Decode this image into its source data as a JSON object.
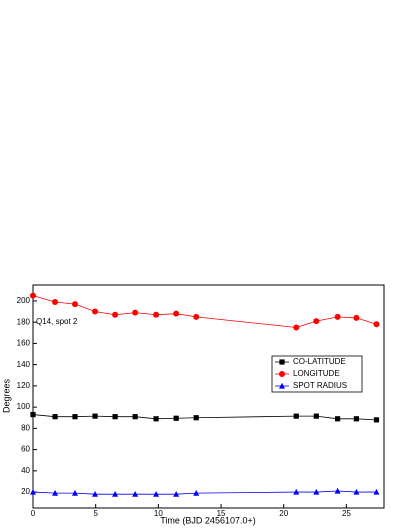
{
  "chart_data": {
    "type": "line",
    "annotation": "Q14, spot 2",
    "xlabel": "Time (BJD 2456107.0+)",
    "ylabel": "Degrees",
    "x": [
      0,
      1.76,
      3.35,
      4.95,
      6.55,
      8.15,
      9.82,
      11.42,
      13.02,
      21.0,
      22.6,
      24.3,
      25.8,
      27.4
    ],
    "series": [
      {
        "name": "CO-LATITUDE",
        "color": "#000000",
        "marker": "square",
        "values": [
          93,
          91,
          91,
          91.5,
          91,
          91,
          89,
          89.5,
          90,
          91.5,
          91.5,
          89,
          89,
          88
        ]
      },
      {
        "name": "LONGITUDE",
        "color": "#ff0000",
        "marker": "circle",
        "values": [
          205,
          199,
          197,
          190,
          187,
          189,
          187,
          188,
          185,
          175,
          181,
          185,
          184,
          178
        ]
      },
      {
        "name": "SPOT RADIUS",
        "color": "#0000ff",
        "marker": "triangle",
        "values": [
          20,
          19,
          19,
          18,
          18,
          18,
          18,
          18,
          19,
          20,
          20,
          21,
          20,
          20
        ]
      }
    ],
    "xlim": [
      0,
      28
    ],
    "xticks": [
      0,
      5,
      10,
      15,
      20,
      25
    ],
    "ylim": [
      5,
      215
    ],
    "yticks": [
      20,
      40,
      60,
      80,
      100,
      120,
      140,
      160,
      180,
      200
    ],
    "legend": "right"
  }
}
